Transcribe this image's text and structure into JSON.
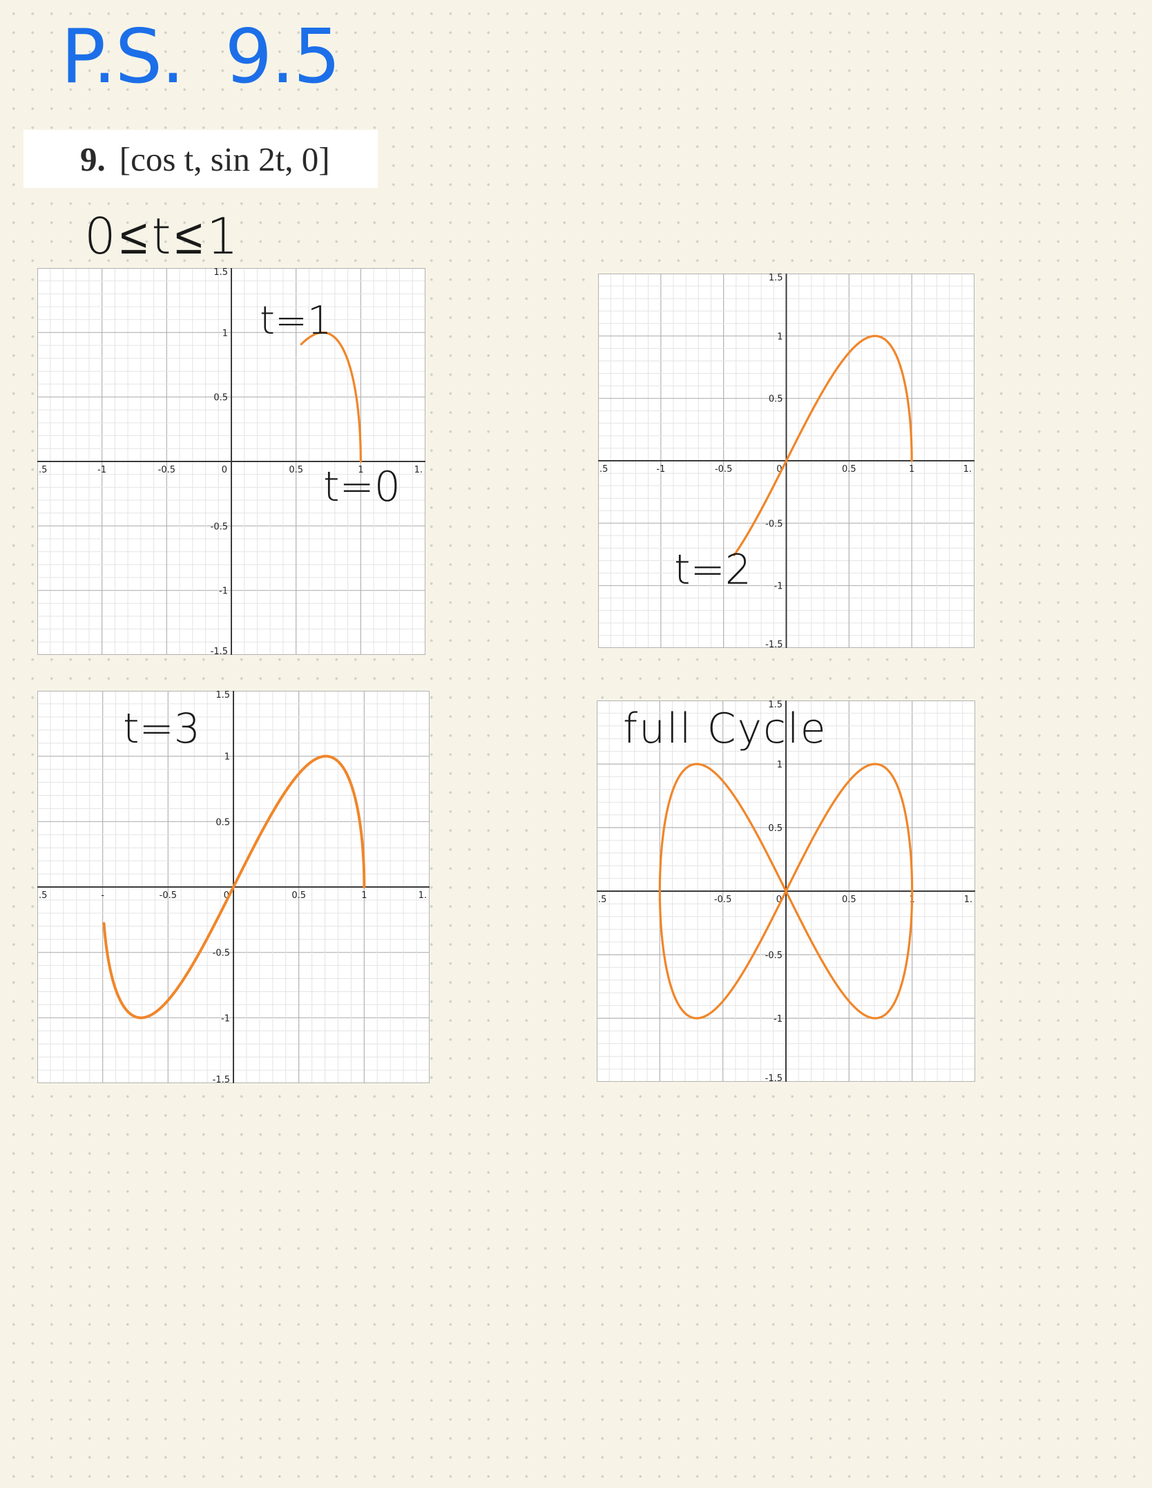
{
  "header": {
    "title_part1": "P.S.",
    "title_part2": "9.5"
  },
  "problem": {
    "number": "9.",
    "expression": "[cos t, sin 2t, 0]"
  },
  "range_note": "0≤t≤1",
  "annotations": {
    "t1": "t=1",
    "t0": "t=0",
    "t2": "t=2",
    "t3": "t=3",
    "full": "full Cycle"
  },
  "colors": {
    "curve": "#f0862a",
    "title": "#1c6fe8",
    "paper": "#f7f4e7"
  },
  "chart_data": [
    {
      "type": "line",
      "parametric": {
        "x": "cos t",
        "y": "sin 2t"
      },
      "t_range": [
        0,
        1
      ],
      "xlim": [
        -1.5,
        1.5
      ],
      "ylim": [
        -1.5,
        1.5
      ],
      "x_ticks": [
        ".5",
        "-1",
        "-0.5",
        "0",
        "0.5",
        "1",
        "1."
      ],
      "y_ticks": [
        "1.5",
        "1",
        "0.5",
        "-0.5",
        "-1",
        "-1.5"
      ],
      "grid": true
    },
    {
      "type": "line",
      "parametric": {
        "x": "cos t",
        "y": "sin 2t"
      },
      "t_range": [
        0,
        2
      ],
      "xlim": [
        -1.5,
        1.5
      ],
      "ylim": [
        -1.5,
        1.5
      ],
      "x_ticks": [
        ".5",
        "-1",
        "-0.5",
        "0",
        "0.5",
        "1",
        "1."
      ],
      "y_ticks": [
        "1.5",
        "1",
        "0.5",
        "-0.5",
        "-1",
        "-1.5"
      ],
      "grid": true
    },
    {
      "type": "line",
      "parametric": {
        "x": "cos t",
        "y": "sin 2t"
      },
      "t_range": [
        0,
        3
      ],
      "xlim": [
        -1.5,
        1.5
      ],
      "ylim": [
        -1.5,
        1.5
      ],
      "x_ticks": [
        ".5",
        "-",
        "-0.5",
        "0",
        "0.5",
        "1",
        "1."
      ],
      "y_ticks": [
        "1.5",
        "1",
        "0.5",
        "-0.5",
        "-1",
        "-1.5"
      ],
      "grid": true
    },
    {
      "type": "line",
      "parametric": {
        "x": "cos t",
        "y": "sin 2t"
      },
      "t_range": [
        0,
        6.2832
      ],
      "xlim": [
        -1.5,
        1.5
      ],
      "ylim": [
        -1.5,
        1.5
      ],
      "x_ticks": [
        ".5",
        "-",
        "-0.5",
        "0",
        "0.5",
        "1",
        "1."
      ],
      "y_ticks": [
        "1.5",
        "1",
        "0.5",
        "-0.5",
        "-1",
        "-1.5"
      ],
      "grid": true
    }
  ]
}
